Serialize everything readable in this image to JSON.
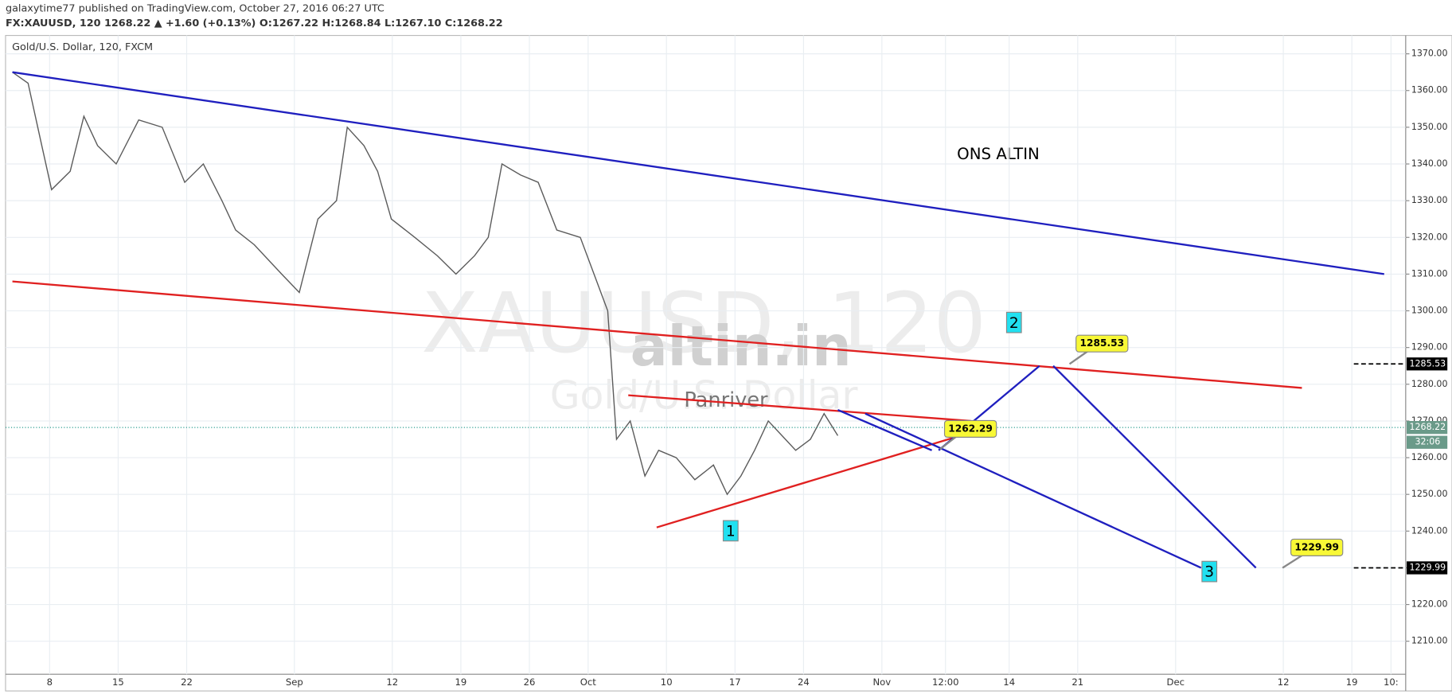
{
  "header": {
    "publisher": "galaxytime77 published on TradingView.com, October 27, 2016 06:27 UTC",
    "symbol_line": "FX:XAUUSD, 120 1268.22 ▲ +1.60 (+0.13%) O:1267.22 H:1268.84 L:1267.10 C:1268.22"
  },
  "chart_data": {
    "type": "line",
    "title": "Gold/U.S. Dollar, 120, FXCM",
    "watermark": "XAUUSD, 120",
    "watermark_subtitle": "Gold/U.S. Dollar",
    "brand": "altin.in",
    "author": "Panriver",
    "annotation": "ONS ALTIN",
    "wave_labels": [
      "1",
      "2",
      "3"
    ],
    "x": [
      217.2,
      218.8,
      220.2,
      221.2,
      223.1,
      224.5,
      225.9,
      227.8,
      230.1,
      232.5,
      234.8,
      236.7,
      238.6,
      240.0,
      241.9,
      244.7,
      246.5,
      248.4,
      250.3,
      251.4,
      253.1,
      254.5,
      255.9,
      258.3,
      260.6,
      262.5,
      264.4,
      265.8,
      267.2,
      269.1,
      270.9,
      272.8,
      275.2,
      276.6,
      278.0,
      278.9,
      280.3,
      281.8,
      283.2,
      285.0,
      286.9,
      288.8,
      290.2,
      291.6,
      293.0,
      294.4,
      295.8,
      297.2,
      298.7,
      300.1,
      301.5
    ],
    "series": [
      {
        "name": "XAUUSD",
        "color": "#5b5b5b",
        "values": [
          1365,
          1362,
          1345,
          1333,
          1338,
          1353,
          1345,
          1340,
          1352,
          1350,
          1335,
          1340,
          1330,
          1322,
          1318,
          1310,
          1305,
          1325,
          1330,
          1350,
          1345,
          1338,
          1325,
          1320,
          1315,
          1310,
          1315,
          1320,
          1340,
          1337,
          1335,
          1322,
          1320,
          1310,
          1300,
          1265,
          1270,
          1255,
          1262,
          1260,
          1254,
          1258,
          1250,
          1255,
          1262,
          1270,
          1266,
          1262,
          1265,
          1272,
          1266
        ]
      }
    ],
    "lines": [
      {
        "color": "#1f1fbf",
        "x": [
          217.2,
          357.3
        ],
        "y": [
          1365,
          1310
        ]
      },
      {
        "color": "#e02020",
        "x": [
          217.2,
          348.9
        ],
        "y": [
          1308,
          1279
        ]
      },
      {
        "color": "#e02020",
        "x": [
          280.1,
          315.1
        ],
        "y": [
          1277,
          1270
        ]
      },
      {
        "color": "#e02020",
        "x": [
          283.0,
          316.5
        ],
        "y": [
          1241,
          1268
        ]
      },
      {
        "color": "#1f1fbf",
        "x": [
          301.5,
          311.1
        ],
        "y": [
          1273,
          1262
        ]
      },
      {
        "color": "#1f1fbf",
        "x": [
          311.8,
          322.1
        ],
        "y": [
          1262,
          1285
        ]
      },
      {
        "color": "#1f1fbf",
        "x": [
          323.5,
          344.2
        ],
        "y": [
          1285,
          1230
        ]
      },
      {
        "color": "#1f1fbf",
        "x": [
          304.3,
          338.6
        ],
        "y": [
          1272,
          1230
        ]
      }
    ],
    "callouts": [
      1285.53,
      1262.29,
      1229.99
    ],
    "price_tags": [
      1285.53,
      1268.22,
      1229.99
    ],
    "countdown": "32:06",
    "xlim": [
      216.5,
      359.5
    ],
    "ylim": [
      1201,
      1375
    ],
    "xticks": [
      {
        "value": 221,
        "label": "8"
      },
      {
        "value": 228,
        "label": "15"
      },
      {
        "value": 235,
        "label": "22"
      },
      {
        "value": 246,
        "label": "Sep"
      },
      {
        "value": 256,
        "label": "12"
      },
      {
        "value": 263,
        "label": "19"
      },
      {
        "value": 270,
        "label": "26"
      },
      {
        "value": 276,
        "label": "Oct"
      },
      {
        "value": 284,
        "label": "10"
      },
      {
        "value": 291,
        "label": "17"
      },
      {
        "value": 298,
        "label": "24"
      },
      {
        "value": 306,
        "label": "Nov"
      },
      {
        "value": 312.5,
        "label": "12:00"
      },
      {
        "value": 319,
        "label": "14"
      },
      {
        "value": 326,
        "label": "21"
      },
      {
        "value": 336,
        "label": "Dec"
      },
      {
        "value": 347,
        "label": "12"
      },
      {
        "value": 354,
        "label": "19"
      },
      {
        "value": 358,
        "label": "10:"
      }
    ],
    "yticks": [
      {
        "value": 1210,
        "label": "1210.00"
      },
      {
        "value": 1220,
        "label": "1220.00"
      },
      {
        "value": 1230,
        "label": "1230.00"
      },
      {
        "value": 1240,
        "label": "1240.00"
      },
      {
        "value": 1250,
        "label": "1250.00"
      },
      {
        "value": 1260,
        "label": "1260.00"
      },
      {
        "value": 1270,
        "label": "1270.00"
      },
      {
        "value": 1280,
        "label": "1280.00"
      },
      {
        "value": 1290,
        "label": "1290.00"
      },
      {
        "value": 1300,
        "label": "1300.00"
      },
      {
        "value": 1310,
        "label": "1310.00"
      },
      {
        "value": 1320,
        "label": "1320.00"
      },
      {
        "value": 1330,
        "label": "1330.00"
      },
      {
        "value": 1340,
        "label": "1340.00"
      },
      {
        "value": 1350,
        "label": "1350.00"
      },
      {
        "value": 1360,
        "label": "1360.00"
      },
      {
        "value": 1370,
        "label": "1370.00"
      }
    ],
    "grid": true
  }
}
